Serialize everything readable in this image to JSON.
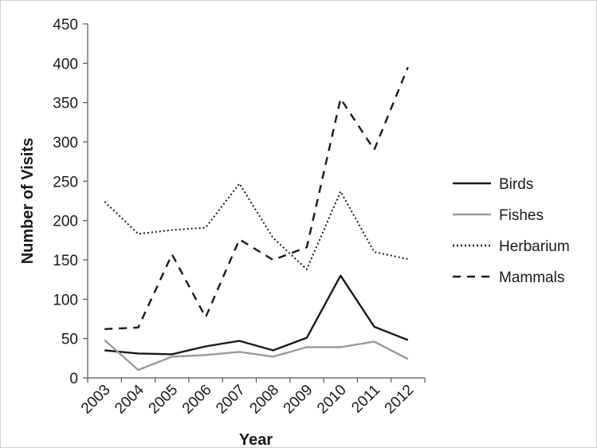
{
  "chart_data": {
    "type": "line",
    "title": "",
    "xlabel": "Year",
    "ylabel": "Number of Visits",
    "categories": [
      "2003",
      "2004",
      "2005",
      "2006",
      "2007",
      "2008",
      "2009",
      "2010",
      "2011",
      "2012"
    ],
    "y_ticks": [
      "0",
      "50",
      "100",
      "150",
      "200",
      "250",
      "300",
      "350",
      "400",
      "450"
    ],
    "ylim": [
      0,
      450
    ],
    "grid": false,
    "legend_position": "right",
    "series": [
      {
        "name": "Birds",
        "values": [
          35,
          31,
          30,
          40,
          47,
          35,
          51,
          130,
          65,
          48
        ],
        "color": "#1a1a1a",
        "style": "solid"
      },
      {
        "name": "Fishes",
        "values": [
          48,
          10,
          27,
          29,
          33,
          27,
          39,
          39,
          46,
          24
        ],
        "color": "#9a9a9a",
        "style": "solid"
      },
      {
        "name": "Herbarium",
        "values": [
          224,
          183,
          188,
          191,
          247,
          178,
          138,
          237,
          160,
          151
        ],
        "color": "#1a1a1a",
        "style": "dotted"
      },
      {
        "name": "Mammals",
        "values": [
          62,
          64,
          157,
          77,
          176,
          150,
          166,
          355,
          290,
          395
        ],
        "color": "#1a1a1a",
        "style": "dashed"
      }
    ]
  }
}
